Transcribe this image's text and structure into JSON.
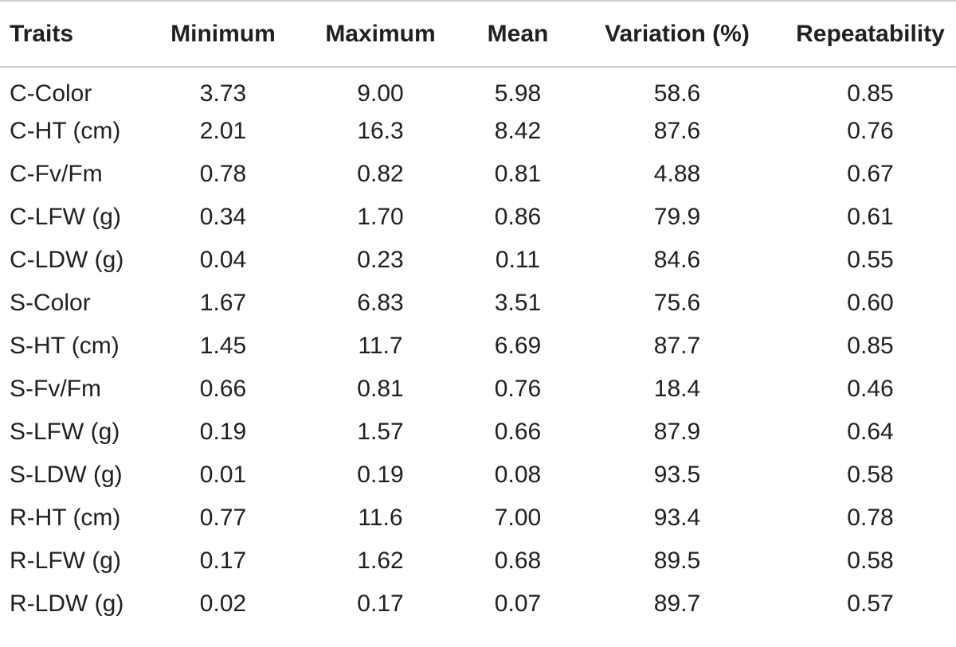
{
  "table": {
    "headers": [
      "Traits",
      "Minimum",
      "Maximum",
      "Mean",
      "Variation (%)",
      "Repeatability"
    ],
    "rows": [
      [
        "C-Color",
        "3.73",
        "9.00",
        "5.98",
        "58.6",
        "0.85"
      ],
      [
        "C-HT (cm)",
        "2.01",
        "16.3",
        "8.42",
        "87.6",
        "0.76"
      ],
      [
        "C-Fv/Fm",
        "0.78",
        "0.82",
        "0.81",
        "4.88",
        "0.67"
      ],
      [
        "C-LFW (g)",
        "0.34",
        "1.70",
        "0.86",
        "79.9",
        "0.61"
      ],
      [
        "C-LDW (g)",
        "0.04",
        "0.23",
        "0.11",
        "84.6",
        "0.55"
      ],
      [
        "S-Color",
        "1.67",
        "6.83",
        "3.51",
        "75.6",
        "0.60"
      ],
      [
        "S-HT (cm)",
        "1.45",
        "11.7",
        "6.69",
        "87.7",
        "0.85"
      ],
      [
        "S-Fv/Fm",
        "0.66",
        "0.81",
        "0.76",
        "18.4",
        "0.46"
      ],
      [
        "S-LFW (g)",
        "0.19",
        "1.57",
        "0.66",
        "87.9",
        "0.64"
      ],
      [
        "S-LDW (g)",
        "0.01",
        "0.19",
        "0.08",
        "93.5",
        "0.58"
      ],
      [
        "R-HT (cm)",
        "0.77",
        "11.6",
        "7.00",
        "93.4",
        "0.78"
      ],
      [
        "R-LFW (g)",
        "0.17",
        "1.62",
        "0.68",
        "89.5",
        "0.58"
      ],
      [
        "R-LDW (g)",
        "0.02",
        "0.17",
        "0.07",
        "89.7",
        "0.57"
      ]
    ]
  }
}
